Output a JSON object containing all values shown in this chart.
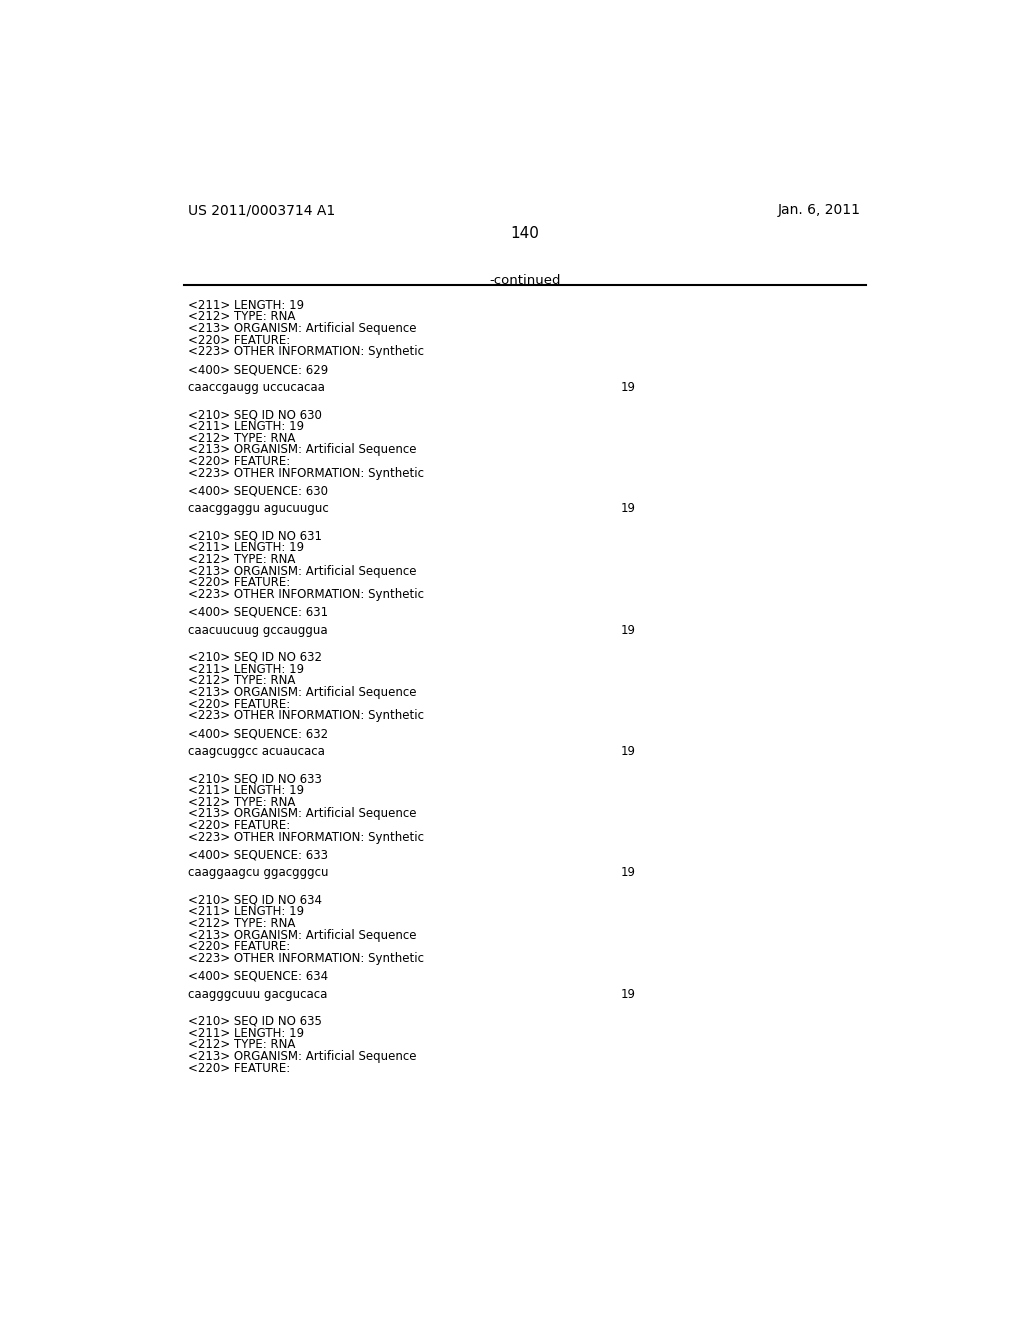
{
  "header_left": "US 2011/0003714 A1",
  "header_right": "Jan. 6, 2011",
  "page_number": "140",
  "continued_text": "-continued",
  "background_color": "#ffffff",
  "text_color": "#000000",
  "monospace_font": "Courier New",
  "serif_font": "Times New Roman",
  "content_blocks": [
    {
      "type": "meta",
      "lines": [
        "<211> LENGTH: 19",
        "<212> TYPE: RNA",
        "<213> ORGANISM: Artificial Sequence",
        "<220> FEATURE:",
        "<223> OTHER INFORMATION: Synthetic"
      ]
    },
    {
      "type": "sequence_header",
      "line": "<400> SEQUENCE: 629"
    },
    {
      "type": "sequence",
      "seq": "caaccgaugg uccucacaa",
      "length": "19"
    },
    {
      "type": "meta",
      "lines": [
        "<210> SEQ ID NO 630",
        "<211> LENGTH: 19",
        "<212> TYPE: RNA",
        "<213> ORGANISM: Artificial Sequence",
        "<220> FEATURE:",
        "<223> OTHER INFORMATION: Synthetic"
      ]
    },
    {
      "type": "sequence_header",
      "line": "<400> SEQUENCE: 630"
    },
    {
      "type": "sequence",
      "seq": "caacggaggu agucuuguc",
      "length": "19"
    },
    {
      "type": "meta",
      "lines": [
        "<210> SEQ ID NO 631",
        "<211> LENGTH: 19",
        "<212> TYPE: RNA",
        "<213> ORGANISM: Artificial Sequence",
        "<220> FEATURE:",
        "<223> OTHER INFORMATION: Synthetic"
      ]
    },
    {
      "type": "sequence_header",
      "line": "<400> SEQUENCE: 631"
    },
    {
      "type": "sequence",
      "seq": "caacuucuug gccauggua",
      "length": "19"
    },
    {
      "type": "meta",
      "lines": [
        "<210> SEQ ID NO 632",
        "<211> LENGTH: 19",
        "<212> TYPE: RNA",
        "<213> ORGANISM: Artificial Sequence",
        "<220> FEATURE:",
        "<223> OTHER INFORMATION: Synthetic"
      ]
    },
    {
      "type": "sequence_header",
      "line": "<400> SEQUENCE: 632"
    },
    {
      "type": "sequence",
      "seq": "caagcuggcc acuaucaca",
      "length": "19"
    },
    {
      "type": "meta",
      "lines": [
        "<210> SEQ ID NO 633",
        "<211> LENGTH: 19",
        "<212> TYPE: RNA",
        "<213> ORGANISM: Artificial Sequence",
        "<220> FEATURE:",
        "<223> OTHER INFORMATION: Synthetic"
      ]
    },
    {
      "type": "sequence_header",
      "line": "<400> SEQUENCE: 633"
    },
    {
      "type": "sequence",
      "seq": "caaggaagcu ggacgggcu",
      "length": "19"
    },
    {
      "type": "meta",
      "lines": [
        "<210> SEQ ID NO 634",
        "<211> LENGTH: 19",
        "<212> TYPE: RNA",
        "<213> ORGANISM: Artificial Sequence",
        "<220> FEATURE:",
        "<223> OTHER INFORMATION: Synthetic"
      ]
    },
    {
      "type": "sequence_header",
      "line": "<400> SEQUENCE: 634"
    },
    {
      "type": "sequence",
      "seq": "caagggcuuu gacgucaca",
      "length": "19"
    },
    {
      "type": "meta",
      "lines": [
        "<210> SEQ ID NO 635",
        "<211> LENGTH: 19",
        "<212> TYPE: RNA",
        "<213> ORGANISM: Artificial Sequence",
        "<220> FEATURE:"
      ]
    }
  ]
}
